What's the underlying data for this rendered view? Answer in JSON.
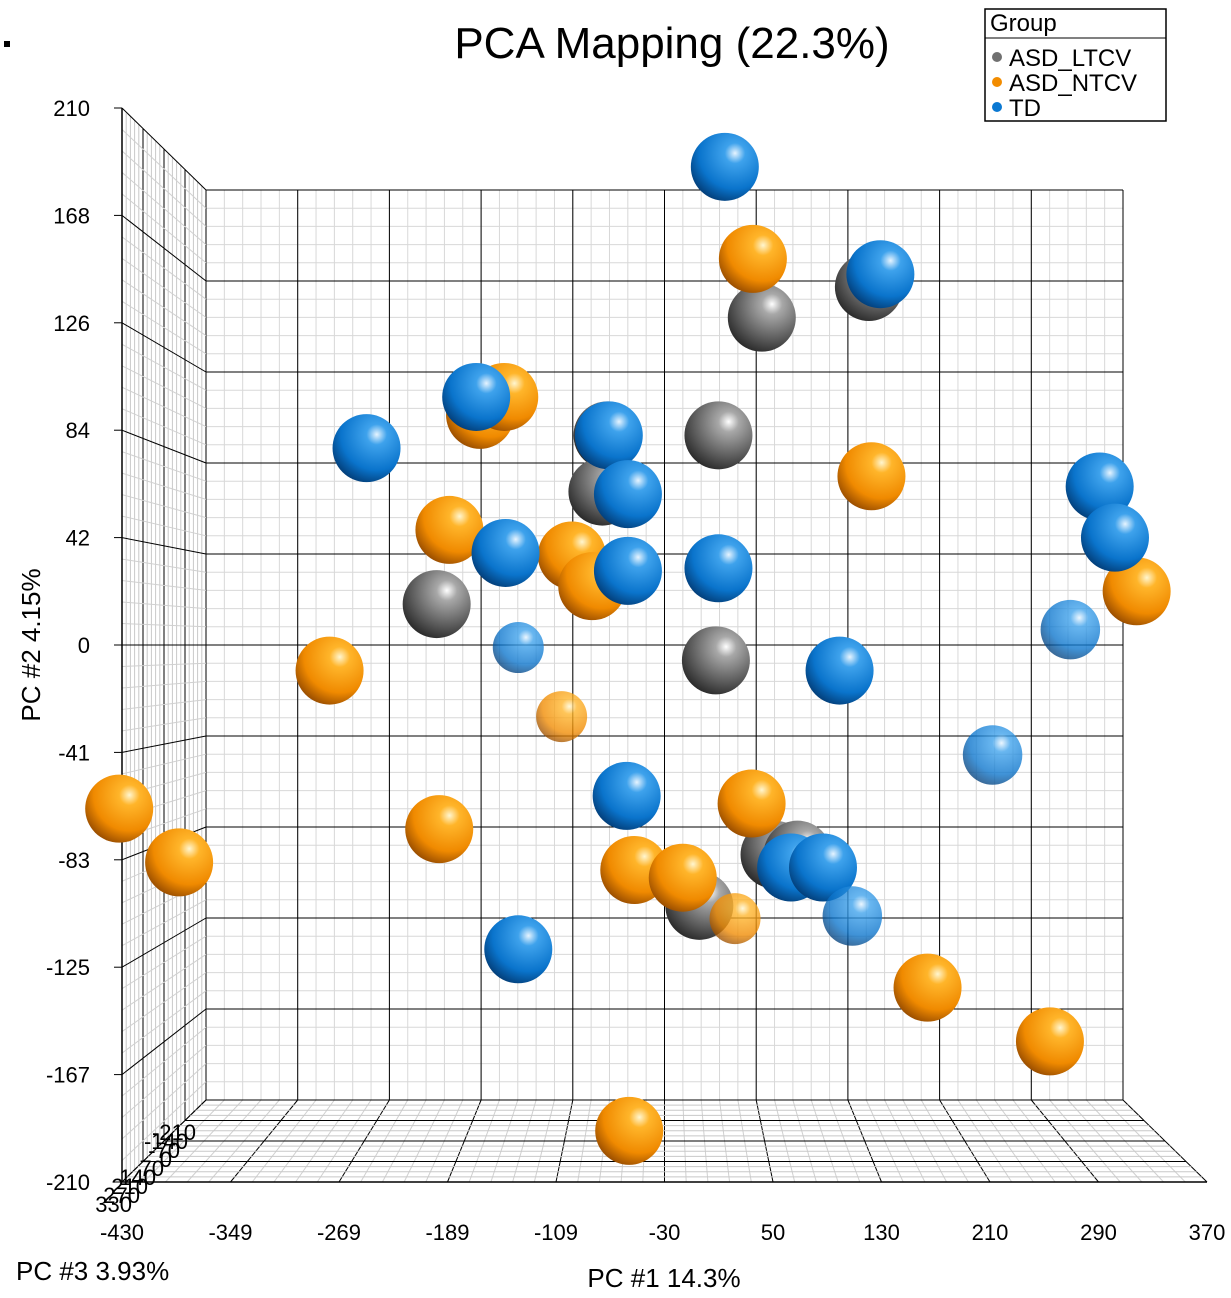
{
  "chart_data": {
    "type": "scatter",
    "title": "PCA Mapping (22.3%)",
    "xlabel": "PC #1 14.3%",
    "ylabel": "PC #2 4.15%",
    "zlabel": "PC #3 3.93%",
    "xlim": [
      -430,
      370
    ],
    "ylim": [
      -210,
      210
    ],
    "x_ticks": [
      "-430",
      "-349",
      "-269",
      "-189",
      "-109",
      "-30",
      "50",
      "130",
      "210",
      "290",
      "370"
    ],
    "y_ticks": [
      "210",
      "168",
      "126",
      "84",
      "42",
      "0",
      "-41",
      "-83",
      "-125",
      "-167",
      "-210"
    ],
    "z_ticks": [
      "-210",
      "-140",
      "-70",
      "0",
      "70",
      "140",
      "210",
      "270",
      "330"
    ],
    "legend": {
      "title": "Group",
      "placement": "top-right",
      "entries": [
        "ASD_LTCV",
        "ASD_NTCV",
        "TD"
      ]
    },
    "colors": {
      "ASD_LTCV": "#707070",
      "ASD_NTCV": "#f28c00",
      "TD": "#0a78d2"
    },
    "series": [
      {
        "name": "ASD_LTCV",
        "points": [
          {
            "x": 126,
            "y": 140,
            "depth": 0.8
          },
          {
            "x": 42,
            "y": 128,
            "depth": 0.8
          },
          {
            "x": -79,
            "y": 82,
            "depth": 0.8
          },
          {
            "x": -83,
            "y": 60,
            "depth": 0.8
          },
          {
            "x": 8,
            "y": 82,
            "depth": 0.8
          },
          {
            "x": -213,
            "y": 16,
            "depth": 0.8
          },
          {
            "x": 6,
            "y": -6,
            "depth": 0.8
          },
          {
            "x": 52,
            "y": -82,
            "depth": 0.8
          },
          {
            "x": 70,
            "y": -82,
            "depth": 0.8
          },
          {
            "x": -7,
            "y": -102,
            "depth": 0.8
          }
        ]
      },
      {
        "name": "ASD_NTCV",
        "points": [
          {
            "x": 35,
            "y": 151,
            "depth": 0.8
          },
          {
            "x": -179,
            "y": 90,
            "depth": 0.8
          },
          {
            "x": -160,
            "y": 97,
            "depth": 0.8
          },
          {
            "x": 128,
            "y": 66,
            "depth": 0.8
          },
          {
            "x": -203,
            "y": 45,
            "depth": 0.8
          },
          {
            "x": -107,
            "y": 35,
            "depth": 0.8
          },
          {
            "x": -91,
            "y": 23,
            "depth": 0.8
          },
          {
            "x": 336,
            "y": 21,
            "depth": 0.8
          },
          {
            "x": -297,
            "y": -10,
            "depth": 0.8
          },
          {
            "x": -115,
            "y": -28,
            "depth": 0.6
          },
          {
            "x": -462,
            "y": -64,
            "depth": 0.8
          },
          {
            "x": -211,
            "y": -72,
            "depth": 0.8
          },
          {
            "x": 34,
            "y": -62,
            "depth": 0.8
          },
          {
            "x": -415,
            "y": -85,
            "depth": 0.8
          },
          {
            "x": -58,
            "y": -88,
            "depth": 0.8
          },
          {
            "x": -20,
            "y": -91,
            "depth": 0.8
          },
          {
            "x": 21,
            "y": -107,
            "depth": 0.6
          },
          {
            "x": 172,
            "y": -134,
            "depth": 0.8
          },
          {
            "x": 268,
            "y": -155,
            "depth": 0.8
          },
          {
            "x": -62,
            "y": -190,
            "depth": 0.8
          }
        ]
      },
      {
        "name": "TD",
        "points": [
          {
            "x": 13,
            "y": 187,
            "depth": 0.8
          },
          {
            "x": 135,
            "y": 145,
            "depth": 0.8
          },
          {
            "x": -182,
            "y": 97,
            "depth": 0.8
          },
          {
            "x": -78,
            "y": 82,
            "depth": 0.8
          },
          {
            "x": -268,
            "y": 77,
            "depth": 0.8
          },
          {
            "x": -63,
            "y": 59,
            "depth": 0.8
          },
          {
            "x": 307,
            "y": 62,
            "depth": 0.8
          },
          {
            "x": 319,
            "y": 42,
            "depth": 0.8
          },
          {
            "x": -159,
            "y": 36,
            "depth": 0.8
          },
          {
            "x": -63,
            "y": 29,
            "depth": 0.8
          },
          {
            "x": 8,
            "y": 30,
            "depth": 0.8
          },
          {
            "x": 284,
            "y": 6,
            "depth": 0.7
          },
          {
            "x": -149,
            "y": -1,
            "depth": 0.6
          },
          {
            "x": 103,
            "y": -10,
            "depth": 0.8
          },
          {
            "x": 223,
            "y": -43,
            "depth": 0.7
          },
          {
            "x": -64,
            "y": -59,
            "depth": 0.8
          },
          {
            "x": 65,
            "y": -87,
            "depth": 0.8
          },
          {
            "x": 90,
            "y": -87,
            "depth": 0.8
          },
          {
            "x": 113,
            "y": -106,
            "depth": 0.7
          },
          {
            "x": -149,
            "y": -119,
            "depth": 0.8
          }
        ]
      }
    ]
  }
}
